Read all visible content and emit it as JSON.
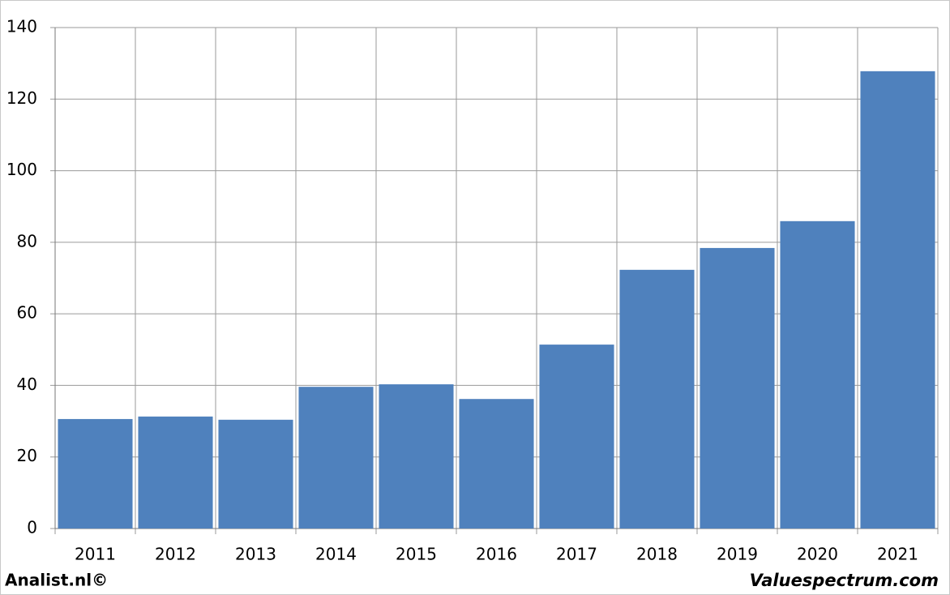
{
  "chart_data": {
    "type": "bar",
    "categories": [
      "2011",
      "2012",
      "2013",
      "2014",
      "2015",
      "2016",
      "2017",
      "2018",
      "2019",
      "2020",
      "2021"
    ],
    "values": [
      30.6,
      31.3,
      30.4,
      39.6,
      40.3,
      36.2,
      51.4,
      72.3,
      78.4,
      85.9,
      127.8
    ],
    "color": "#4f81bd",
    "ylim": [
      0,
      140
    ],
    "yticks": [
      0,
      20,
      40,
      60,
      80,
      100,
      120,
      140
    ],
    "grid": true,
    "annotations": [
      "Analist.nl©",
      "Valuespectrum.com"
    ]
  }
}
